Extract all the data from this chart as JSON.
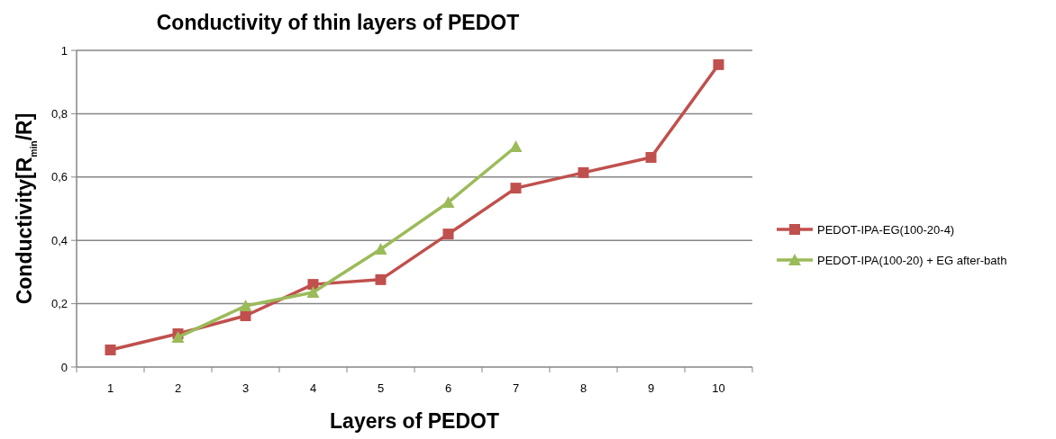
{
  "chart_data": {
    "type": "line",
    "title": "Conductivity of thin layers of PEDOT",
    "xlabel": "Layers of PEDOT",
    "ylabel": "Conductivity[R$_{min}$/R]",
    "categories": [
      "1",
      "2",
      "3",
      "4",
      "5",
      "6",
      "7",
      "8",
      "9",
      "10"
    ],
    "series": [
      {
        "name": "PEDOT-IPA-EG(100-20-4)",
        "color": "#c0504d",
        "marker": "square",
        "values": [
          0.054,
          0.105,
          0.162,
          0.261,
          0.276,
          0.42,
          0.565,
          0.614,
          0.662,
          0.955
        ]
      },
      {
        "name": "PEDOT-IPA(100-20) + EG after-bath",
        "color": "#9bbb59",
        "marker": "triangle",
        "values": [
          null,
          0.094,
          0.193,
          0.236,
          0.372,
          0.52,
          0.696,
          null,
          null,
          null
        ]
      }
    ],
    "ylim": [
      0,
      1
    ],
    "yticks": [
      0,
      {
        "value": 0.2,
        "label": "0,2"
      },
      {
        "value": 0.4,
        "label": "0,4"
      },
      {
        "value": 0.6,
        "label": "0,6"
      },
      {
        "value": 0.8,
        "label": "0,8"
      },
      1
    ],
    "grid": "y",
    "legend": "right"
  }
}
